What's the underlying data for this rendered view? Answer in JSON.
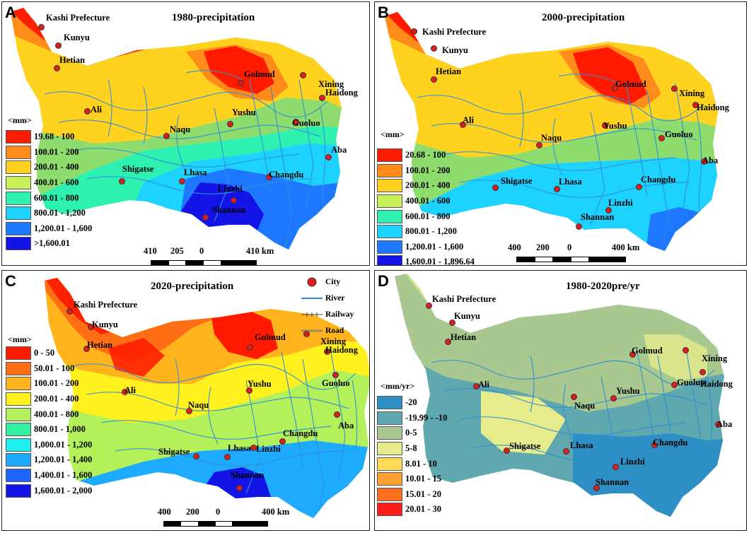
{
  "panels": [
    {
      "letter": "A",
      "title": "1980-precipitation",
      "unit": "<mm>",
      "legend": [
        {
          "label": "19.68 - 100",
          "color": "#ff1a00"
        },
        {
          "label": "100.01 - 200",
          "color": "#ff8c1a"
        },
        {
          "label": "200.01 - 400",
          "color": "#ffd21f"
        },
        {
          "label": "400.01 - 600",
          "color": "#c8f05a"
        },
        {
          "label": "600.01 - 800",
          "color": "#2ef0b0"
        },
        {
          "label": "800.01 - 1,200",
          "color": "#1ed2ff"
        },
        {
          "label": "1,200.01 - 1,600",
          "color": "#1e78ff"
        },
        {
          "label": ">1,600.01",
          "color": "#1414e6"
        }
      ],
      "scale": {
        "n0": "410",
        "n1": "205",
        "n2": "0",
        "n3": "410 km"
      }
    },
    {
      "letter": "B",
      "title": "2000-precipitation",
      "unit": "<mm>",
      "legend": [
        {
          "label": "20.68 - 100",
          "color": "#ff1a00"
        },
        {
          "label": "100.01 - 200",
          "color": "#ff8c1a"
        },
        {
          "label": "200.01 - 400",
          "color": "#ffd21f"
        },
        {
          "label": "400.01 - 600",
          "color": "#c8f05a"
        },
        {
          "label": "600.01 - 800",
          "color": "#2ef0b0"
        },
        {
          "label": "800.01 - 1,200",
          "color": "#1ed2ff"
        },
        {
          "label": "1,200.01 - 1,600",
          "color": "#1e78ff"
        },
        {
          "label": "1,600.01 - 1,896.64",
          "color": "#1414e6"
        }
      ],
      "scale": {
        "n0": "400",
        "n1": "200",
        "n2": "0",
        "n3": "400 km"
      }
    },
    {
      "letter": "C",
      "title": "2020-precipitation",
      "unit": "<mm>",
      "legend": [
        {
          "label": "0 - 50",
          "color": "#ff1a00"
        },
        {
          "label": "50.01 - 100",
          "color": "#ff6e14"
        },
        {
          "label": "100.01 - 200",
          "color": "#ffb41e"
        },
        {
          "label": "200.01 - 400",
          "color": "#fff01e"
        },
        {
          "label": "400.01 - 800",
          "color": "#b4f05a"
        },
        {
          "label": "800.01 - 1,000",
          "color": "#32f0a0"
        },
        {
          "label": "1,000.01 - 1,200",
          "color": "#1ef0f0"
        },
        {
          "label": "1,200.01 - 1,400",
          "color": "#1eaaff"
        },
        {
          "label": "1,400.01 - 1,600",
          "color": "#1e64ff"
        },
        {
          "label": "1,600.01 - 2,000",
          "color": "#1414e6"
        }
      ],
      "scale": {
        "n0": "400",
        "n1": "200",
        "n2": "0",
        "n3": "400 km"
      },
      "map_legend": [
        {
          "label": "City",
          "kind": "city"
        },
        {
          "label": "River",
          "kind": "river"
        },
        {
          "label": "Railway",
          "kind": "railway"
        },
        {
          "label": "Road",
          "kind": "road"
        }
      ]
    },
    {
      "letter": "D",
      "title": "1980-2020pre/yr",
      "unit": "<mm/yr>",
      "legend": [
        {
          "label": "-20",
          "color": "#2e8fc4"
        },
        {
          "label": "-19.99 - -10",
          "color": "#5fa8b0"
        },
        {
          "label": "0-5",
          "color": "#a8c890"
        },
        {
          "label": "5-8",
          "color": "#e6eb8c"
        },
        {
          "label": "8.01 - 10",
          "color": "#ffdc5a"
        },
        {
          "label": "10.01 - 15",
          "color": "#ffa032"
        },
        {
          "label": "15.01 - 20",
          "color": "#ff6e1e"
        },
        {
          "label": "20.01 - 30",
          "color": "#ff1e1e"
        }
      ]
    }
  ],
  "cities": [
    "Kashi Prefecture",
    "Kunyu",
    "Hetian",
    "Golmud",
    "Xining",
    "Haidong",
    "Ali",
    "Yushu",
    "Guoluo",
    "Naqu",
    "Aba",
    "Shigatse",
    "Lhasa",
    "Changdu",
    "Linzhi",
    "Shannan"
  ],
  "colors": {
    "city_fill": "#e11d1d",
    "river": "#2f8fd8",
    "road": "#a08c5a",
    "railway": "#444444"
  }
}
